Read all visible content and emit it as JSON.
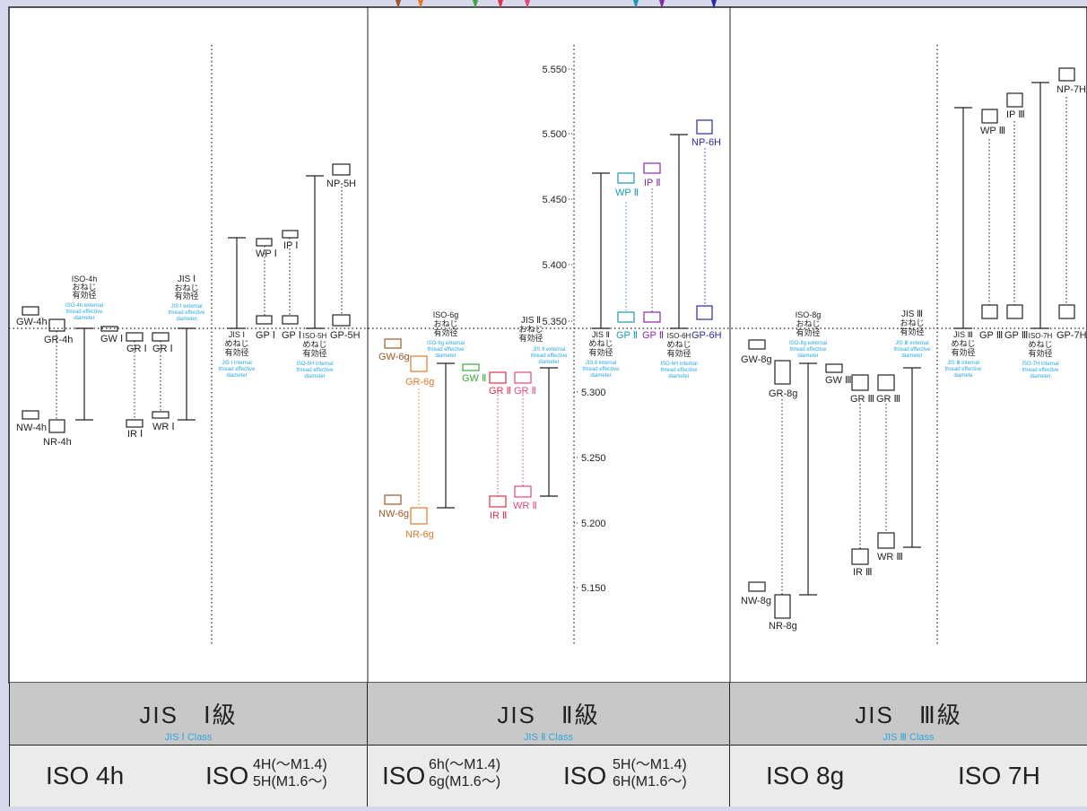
{
  "scale": {
    "ticks": [
      "5.550",
      "5.500",
      "5.450",
      "5.400",
      "5.350",
      "5.300",
      "5.250",
      "5.200",
      "5.150"
    ]
  },
  "panel1": {
    "items": {
      "gw4h": "GW-4h",
      "gr4h": "GR-4h",
      "nw4h": "NW-4h",
      "nr4h": "NR-4h",
      "gw1": "GW Ⅰ",
      "gr1a": "GR Ⅰ",
      "gr1b": "GR Ⅰ",
      "ir1": "IR Ⅰ",
      "wr1": "WR Ⅰ",
      "wp1": "WP Ⅰ",
      "ip1": "IP Ⅰ",
      "gp1a": "GP Ⅰ",
      "gp1b": "GP Ⅰ",
      "np5h": "NP-5H",
      "gp5h": "GP-5H"
    },
    "ext_iso": {
      "l1": "ISO-4h",
      "l2": "おねじ",
      "l3": "有効径",
      "en1": "ISO-4h external",
      "en2": "thread effective",
      "en3": "diameter"
    },
    "ext_jis": {
      "l1": "JIS Ⅰ",
      "l2": "おねじ",
      "l3": "有効径",
      "en1": "JIS Ⅰ external",
      "en2": "thread effective",
      "en3": "diameter"
    },
    "int_jis": {
      "l1": "JIS Ⅰ",
      "l2": "めねじ",
      "l3": "有効径",
      "en1": "JIS Ⅰ internal",
      "en2": "thread effective",
      "en3": "diameter"
    },
    "int_iso": {
      "l1": "ISO-5H",
      "l2": "めねじ",
      "l3": "有効径",
      "en1": "ISO-5H internal",
      "en2": "thread effective",
      "en3": "diameter"
    }
  },
  "panel2": {
    "items": {
      "gw6g": "GW-6g",
      "gr6g": "GR-6g",
      "nw6g": "NW-6g",
      "nr6g": "NR-6g",
      "gw2": "GW Ⅱ",
      "gr2a": "GR Ⅱ",
      "gr2b": "GR Ⅱ",
      "ir2": "IR Ⅱ",
      "wr2": "WR Ⅱ",
      "wp2": "WP Ⅱ",
      "ip2": "IP Ⅱ",
      "gp2a": "GP Ⅱ",
      "gp2b": "GP Ⅱ",
      "np6h": "NP-6H",
      "gp6h": "GP-6H"
    },
    "ext_iso": {
      "l1": "ISO-6g",
      "l2": "おねじ",
      "l3": "有効径",
      "en1": "ISO-6g external",
      "en2": "thread effective",
      "en3": "diameter"
    },
    "ext_jis": {
      "l1": "JIS Ⅱ",
      "l2": "おねじ",
      "l3": "有効径",
      "en1": "JIS Ⅱ external",
      "en2": "thread effective",
      "en3": "diameter"
    },
    "int_jis": {
      "l1": "JIS Ⅱ",
      "l2": "めねじ",
      "l3": "有効径",
      "en1": "JIS Ⅱ internal",
      "en2": "thread effective",
      "en3": "diameter"
    },
    "int_iso": {
      "l1": "ISO-6H",
      "l2": "めねじ",
      "l3": "有効径",
      "en1": "ISO-6H internal",
      "en2": "thread effective",
      "en3": "diameter"
    }
  },
  "panel3": {
    "items": {
      "gw8g": "GW-8g",
      "gr8g": "GR-8g",
      "nw8g": "NW-8g",
      "nr8g": "NR-8g",
      "gw3": "GW Ⅲ",
      "gr3a": "GR Ⅲ",
      "gr3b": "GR Ⅲ",
      "ir3": "IR Ⅲ",
      "wr3": "WR Ⅲ",
      "wp3": "WP Ⅲ",
      "ip3": "IP Ⅲ",
      "gp3a": "GP Ⅲ",
      "gp3b": "GP Ⅲ",
      "np7h": "NP-7H",
      "gp7h": "GP-7H"
    },
    "ext_iso": {
      "l1": "ISO-8g",
      "l2": "おねじ",
      "l3": "有効径",
      "en1": "ISO-8g external",
      "en2": "thread effective",
      "en3": "diameter"
    },
    "ext_jis": {
      "l1": "JIS Ⅲ",
      "l2": "おねじ",
      "l3": "有効径",
      "en1": "JIS Ⅲ external",
      "en2": "thread effective",
      "en3": "diameter"
    },
    "int_jis": {
      "l1": "JIS Ⅲ",
      "l2": "めねじ",
      "l3": "有効径",
      "en1": "JIS Ⅲ internal",
      "en2": "thread effective",
      "en3": "diamete"
    },
    "int_iso": {
      "l1": "ISO-7H",
      "l2": "めねじ",
      "l3": "有効径",
      "en1": "ISO-7H internal",
      "en2": "thread effective",
      "en3": "diameter"
    }
  },
  "footer": {
    "jis1": {
      "main": "JIS　Ⅰ級",
      "sub": "JIS Ⅰ Class"
    },
    "jis2": {
      "main": "JIS　Ⅱ級",
      "sub": "JIS Ⅱ Class"
    },
    "jis3": {
      "main": "JIS　Ⅲ級",
      "sub": "JIS Ⅲ Class"
    },
    "iso1": {
      "left": "ISO 4h",
      "right": "ISO",
      "r1": "4H(～M1.4)",
      "r2": "5H(M1.6～)"
    },
    "iso2": {
      "left": "ISO",
      "l1": "6h(～M1.4)",
      "l2": "6g(M1.6～)",
      "right": "ISO",
      "r1": "5H(～M1.4)",
      "r2": "6H(M1.6～)"
    },
    "iso3": {
      "left": "ISO 8g",
      "right": "ISO 7H"
    }
  },
  "colors": {
    "black": "#222222",
    "orange": "#e07a2a",
    "brown": "#9a5a2a",
    "green": "#3aa83a",
    "red": "#e0304a",
    "pink": "#e04a7a",
    "teal": "#1a9ab0",
    "purple": "#8a2aa0",
    "navy": "#2a2aa0",
    "caption": "#2aa8e0"
  }
}
